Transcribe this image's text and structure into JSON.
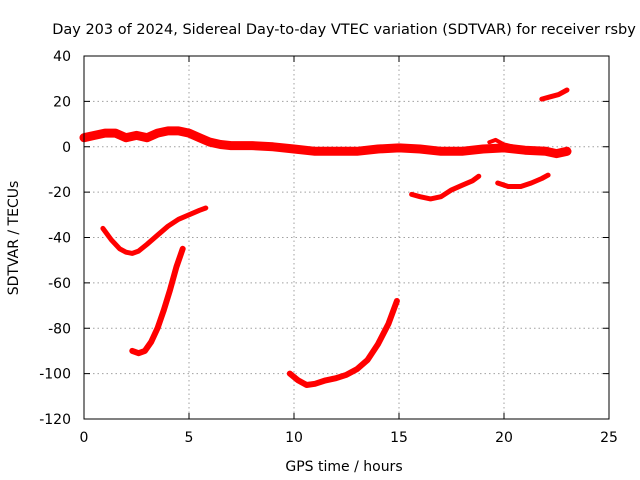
{
  "chart_data": {
    "type": "line",
    "title": "Day 203 of 2024, Sidereal Day-to-day VTEC variation (SDTVAR) for receiver rsby",
    "xlabel": "GPS time / hours",
    "ylabel": "SDTVAR / TECUs",
    "xlim": [
      0,
      25
    ],
    "ylim": [
      -120,
      40
    ],
    "xticks": [
      0,
      5,
      10,
      15,
      20,
      25
    ],
    "yticks": [
      -120,
      -100,
      -80,
      -60,
      -40,
      -20,
      0,
      20,
      40
    ],
    "grid": true,
    "color": "#ff0000",
    "series": [
      {
        "name": "arc-main",
        "width": 9,
        "x": [
          0,
          0.5,
          1.0,
          1.5,
          2.0,
          2.5,
          3.0,
          3.5,
          4.0,
          4.5,
          5.0,
          5.5,
          6.0,
          6.5,
          7.0,
          8.0,
          9.0,
          10.0,
          11.0,
          12.0,
          13.0,
          14.0,
          15.0,
          16.0,
          17.0,
          18.0,
          19.0,
          20.0,
          21.0,
          22.0,
          22.5,
          23.0
        ],
        "y": [
          4,
          5,
          6,
          6,
          4,
          5,
          4,
          6,
          7,
          7,
          6,
          4,
          2,
          1,
          0.5,
          0.5,
          0,
          -1,
          -2,
          -2,
          -2,
          -1,
          -0.5,
          -1,
          -2,
          -2,
          -1,
          -0.5,
          -1.5,
          -2,
          -3,
          -2
        ]
      },
      {
        "name": "arc-upper-right",
        "width": 5,
        "x": [
          21.8,
          22.2,
          22.6,
          23.0
        ],
        "y": [
          21,
          22,
          23,
          25
        ]
      },
      {
        "name": "arc-19h-20h",
        "width": 4,
        "x": [
          19.3,
          19.6,
          20.0,
          20.5
        ],
        "y": [
          2,
          3,
          1,
          0
        ]
      },
      {
        "name": "arc-16h-19h",
        "width": 5,
        "x": [
          15.6,
          16.0,
          16.5,
          17.0,
          17.5,
          18.0,
          18.5,
          18.8
        ],
        "y": [
          -21,
          -22,
          -23,
          -22,
          -19,
          -17,
          -15,
          -13
        ]
      },
      {
        "name": "arc-20h-22h",
        "width": 5,
        "x": [
          19.7,
          20.2,
          20.8,
          21.3,
          21.8,
          22.1
        ],
        "y": [
          -16,
          -17.5,
          -17.5,
          -16,
          -14,
          -12.5
        ]
      },
      {
        "name": "arc-1h-6h",
        "width": 5,
        "x": [
          0.9,
          1.3,
          1.7,
          2.0,
          2.3,
          2.6,
          3.0,
          3.5,
          4.0,
          4.5,
          5.0,
          5.5,
          5.8
        ],
        "y": [
          -36,
          -41,
          -45,
          -46.5,
          -47,
          -46,
          -43,
          -39,
          -35,
          -32,
          -30,
          -28,
          -27
        ]
      },
      {
        "name": "arc-2h-5h",
        "width": 6,
        "x": [
          2.3,
          2.6,
          2.9,
          3.2,
          3.5,
          3.8,
          4.1,
          4.4,
          4.7
        ],
        "y": [
          -90,
          -91,
          -90,
          -86,
          -80,
          -72,
          -63,
          -53,
          -45
        ]
      },
      {
        "name": "arc-10h-15h",
        "width": 6,
        "x": [
          9.8,
          10.2,
          10.6,
          11.0,
          11.5,
          12.0,
          12.5,
          13.0,
          13.5,
          14.0,
          14.5,
          14.9
        ],
        "y": [
          -100,
          -103,
          -105,
          -104.5,
          -103,
          -102,
          -100.5,
          -98,
          -94,
          -87,
          -78,
          -68
        ]
      }
    ]
  }
}
